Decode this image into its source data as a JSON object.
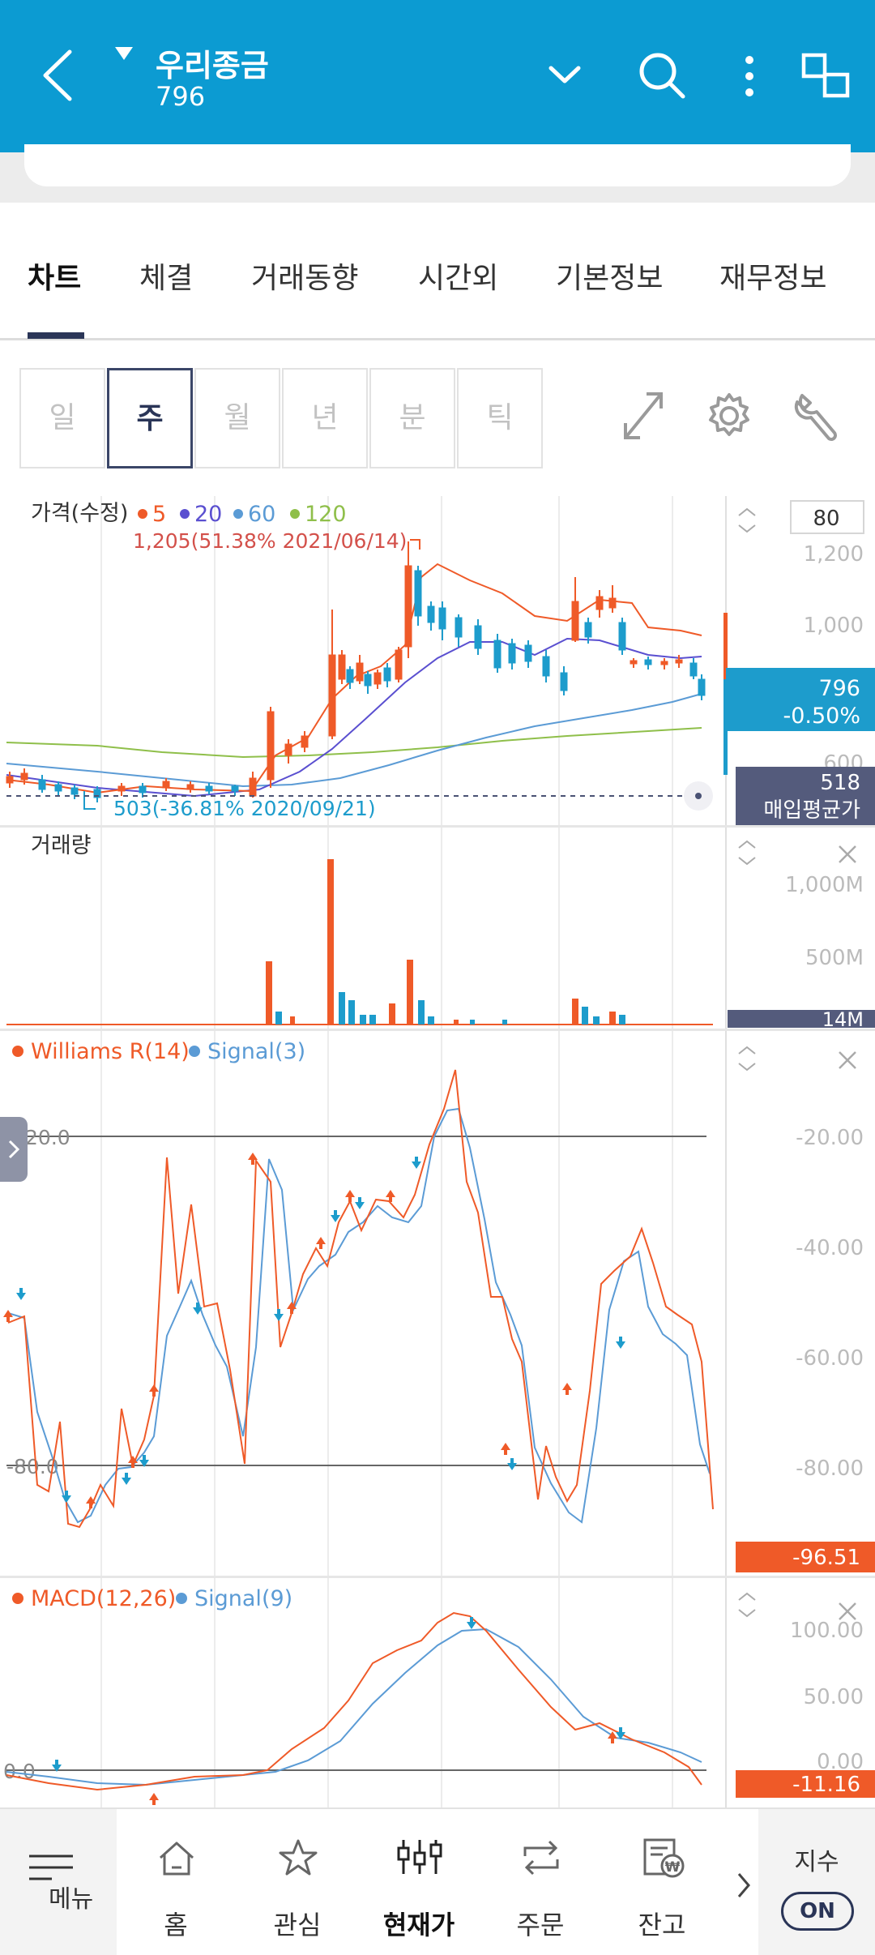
{
  "header": {
    "stock_name": "우리종금",
    "stock_code": "796"
  },
  "tabs": [
    {
      "label": "차트",
      "active": true
    },
    {
      "label": "체결",
      "active": false
    },
    {
      "label": "거래동향",
      "active": false
    },
    {
      "label": "시간외",
      "active": false
    },
    {
      "label": "기본정보",
      "active": false
    },
    {
      "label": "재무정보",
      "active": false
    }
  ],
  "periods": [
    {
      "label": "일",
      "active": false
    },
    {
      "label": "주",
      "active": true
    },
    {
      "label": "월",
      "active": false
    },
    {
      "label": "년",
      "active": false
    },
    {
      "label": "분",
      "active": false
    },
    {
      "label": "틱",
      "active": false
    }
  ],
  "price_panel": {
    "legend_title": "가격(수정)",
    "ma_legend": [
      {
        "label": "5",
        "color": "#ef5a28"
      },
      {
        "label": "20",
        "color": "#5a4fd0"
      },
      {
        "label": "60",
        "color": "#5b9bd5"
      },
      {
        "label": "120",
        "color": "#8fbf4a"
      }
    ],
    "high_annotation": "1,205(51.38% 2021/06/14)",
    "low_annotation": "503(-36.81% 2020/09/21)",
    "count_box": "80",
    "axis_ticks": [
      "1,200",
      "1,000"
    ],
    "axis_tick_partial": "600",
    "current_price": "796",
    "change_pct": "-0.50%",
    "avg_price_value": "518",
    "avg_price_label": "매입평균가"
  },
  "volume_panel": {
    "title": "거래량",
    "axis_ticks": [
      "1,000M",
      "500M"
    ],
    "current_volume": "14M"
  },
  "williams_panel": {
    "legend": [
      {
        "label": "Williams R(14)",
        "color": "#ef5a28"
      },
      {
        "label": "Signal(3)",
        "color": "#5b9bd5"
      }
    ],
    "line_labels": [
      "-20.0",
      "-80.0"
    ],
    "axis_ticks": [
      "-20.00",
      "-40.00",
      "-60.00",
      "-80.00"
    ],
    "current_value": "-96.51"
  },
  "macd_panel": {
    "legend": [
      {
        "label": "MACD(12,26)",
        "color": "#ef5a28"
      },
      {
        "label": "Signal(9)",
        "color": "#5b9bd5"
      }
    ],
    "line_label": "0.0",
    "axis_ticks": [
      "100.00",
      "50.00"
    ],
    "axis_tick_partial": "0.00",
    "current_value": "-11.16"
  },
  "colors": {
    "header": "#0c9bd2",
    "up": "#ef5a28",
    "down": "#1d9ccc",
    "avg_box": "#545b7c"
  },
  "bottom_nav": {
    "menu_label": "메뉴",
    "items": [
      {
        "label": "홈",
        "icon": "home-icon",
        "active": false
      },
      {
        "label": "관심",
        "icon": "star-icon",
        "active": false
      },
      {
        "label": "현재가",
        "icon": "current-price-icon",
        "active": true
      },
      {
        "label": "주문",
        "icon": "order-icon",
        "active": false
      },
      {
        "label": "잔고",
        "icon": "balance-icon",
        "active": false
      }
    ],
    "index_label": "지수",
    "index_toggle": "ON"
  }
}
